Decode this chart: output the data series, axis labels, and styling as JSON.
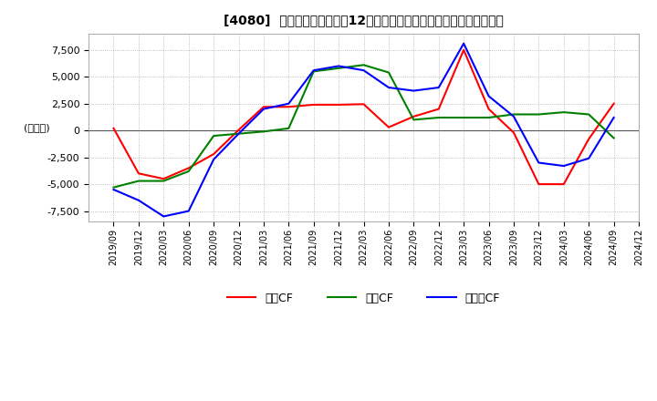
{
  "title": "[4080]  キャッシュフローの12か月移動合計の対前年同期増減額の推移",
  "ylabel": "(百万円)",
  "ylim": [
    -8500,
    9000
  ],
  "yticks": [
    -7500,
    -5000,
    -2500,
    0,
    2500,
    5000,
    7500
  ],
  "background_color": "#ffffff",
  "grid_color": "#aaaaaa",
  "dates": [
    "2019/09",
    "2019/12",
    "2020/03",
    "2020/06",
    "2020/09",
    "2020/12",
    "2021/03",
    "2021/06",
    "2021/09",
    "2021/12",
    "2022/03",
    "2022/06",
    "2022/09",
    "2022/12",
    "2023/03",
    "2023/06",
    "2023/09",
    "2023/12",
    "2024/03",
    "2024/06",
    "2024/09",
    "2024/12"
  ],
  "operating_cf": [
    200,
    -4000,
    -4500,
    -3500,
    -2200,
    50,
    2200,
    2200,
    2400,
    2400,
    2450,
    300,
    1300,
    2000,
    7500,
    2000,
    -200,
    -5000,
    -5000,
    -800,
    2500,
    null
  ],
  "investing_cf": [
    -5300,
    -4700,
    -4700,
    -3800,
    -500,
    -300,
    -100,
    200,
    5500,
    5800,
    6100,
    5400,
    1000,
    1200,
    1200,
    1200,
    1500,
    1500,
    1700,
    1500,
    -700,
    null
  ],
  "free_cf": [
    -5500,
    -6500,
    -8000,
    -7500,
    -2700,
    -300,
    2000,
    2500,
    5600,
    6000,
    5600,
    4000,
    3700,
    4000,
    8100,
    3200,
    1300,
    -3000,
    -3300,
    -2600,
    1200,
    null
  ],
  "line_colors": {
    "operating": "#ff0000",
    "investing": "#008000",
    "free": "#0000ff"
  },
  "legend_labels": [
    "営業CF",
    "投資CF",
    "フリーCF"
  ]
}
